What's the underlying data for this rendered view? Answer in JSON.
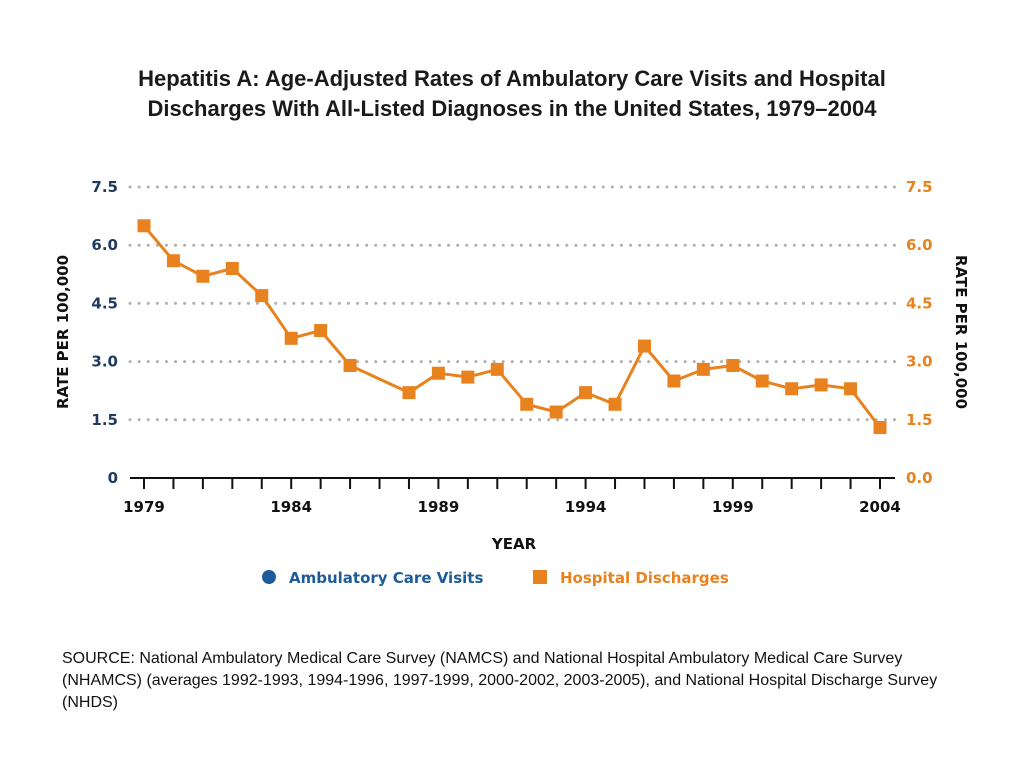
{
  "title_line1": "Hepatitis A:  Age-Adjusted Rates of Ambulatory Care Visits and Hospital",
  "title_line2": "Discharges With All-Listed Diagnoses in the United States, 1979–2004",
  "source": "SOURCE: National Ambulatory Medical Care Survey (NAMCS) and National Hospital Ambulatory Medical Care Survey (NHAMCS) (averages 1992-1993, 1994-1996, 1997-1999, 2000-2002, 2003-2005), and National Hospital Discharge Survey (NHDS)",
  "colors": {
    "hospital": "#e8821e",
    "ambulatory": "#1d5b99",
    "left_axis": "#1f3a5f",
    "grid": "#b0b0b0"
  },
  "chart_data": {
    "type": "line",
    "xlabel": "YEAR",
    "ylabel_left": "RATE PER 100,000",
    "ylabel_right": "RATE PER 100,000",
    "xlim": [
      1979,
      2004
    ],
    "ylim": [
      0,
      7.5
    ],
    "x_ticks": [
      "1979",
      "1984",
      "1989",
      "1994",
      "1999",
      "2004"
    ],
    "y_ticks_left": [
      "0",
      "1.5",
      "3.0",
      "4.5",
      "6.0",
      "7.5"
    ],
    "y_ticks_right": [
      "0.0",
      "1.5",
      "3.0",
      "4.5",
      "6.0",
      "7.5"
    ],
    "grid": "horizontal dotted",
    "legend": {
      "position": "bottom",
      "entries": [
        "Ambulatory Care Visits",
        "Hospital Discharges"
      ]
    },
    "series": [
      {
        "name": "Hospital Discharges",
        "marker": "square",
        "x": [
          1979,
          1980,
          1981,
          1982,
          1983,
          1984,
          1985,
          1986,
          1988,
          1989,
          1990,
          1991,
          1992,
          1993,
          1994,
          1995,
          1996,
          1997,
          1998,
          1999,
          2000,
          2001,
          2002,
          2003,
          2004
        ],
        "y": [
          6.5,
          5.6,
          5.2,
          5.4,
          4.7,
          3.6,
          3.8,
          2.9,
          2.2,
          2.7,
          2.6,
          2.8,
          1.9,
          1.7,
          2.2,
          1.9,
          3.4,
          2.5,
          2.8,
          2.9,
          2.5,
          2.3,
          2.4,
          2.3,
          1.3
        ]
      },
      {
        "name": "Ambulatory Care Visits",
        "marker": "circle",
        "x": [],
        "y": []
      }
    ]
  }
}
